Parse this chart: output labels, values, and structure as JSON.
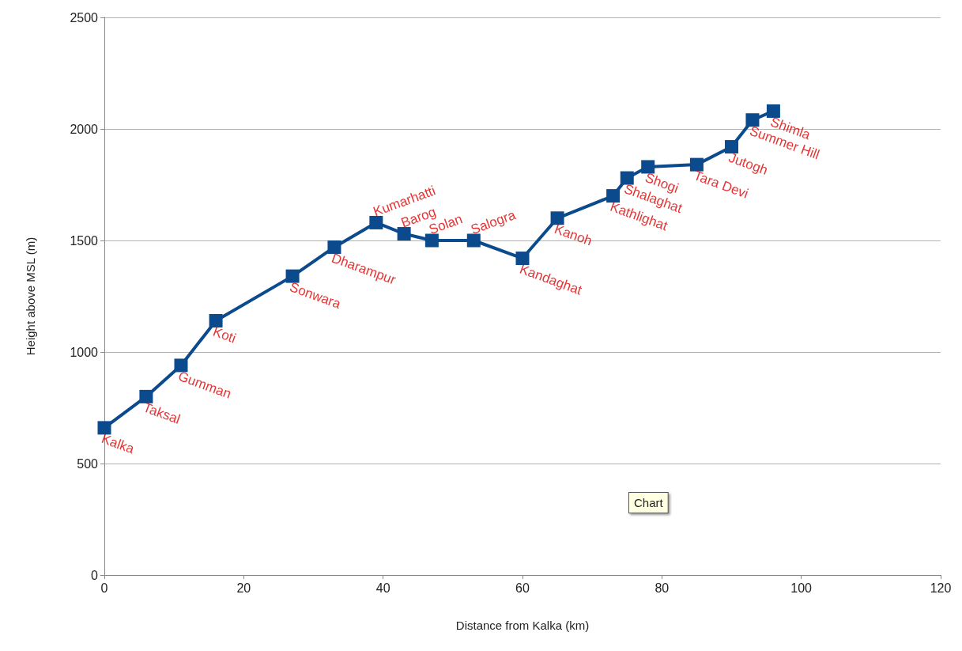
{
  "chart_data": {
    "type": "line",
    "xlabel": "Distance from Kalka (km)",
    "ylabel": "Height above MSL (m)",
    "x": [
      0,
      6,
      11,
      16,
      27,
      33,
      39,
      43,
      47,
      53,
      60,
      65,
      73,
      75,
      78,
      85,
      90,
      93,
      96
    ],
    "series": [
      {
        "color": "#0b4a8c",
        "values": [
          660,
          800,
          940,
          1140,
          1340,
          1470,
          1580,
          1530,
          1500,
          1500,
          1420,
          1600,
          1700,
          1780,
          1830,
          1840,
          1920,
          2040,
          2080
        ]
      }
    ],
    "xlim": [
      0,
      120
    ],
    "xticks": [
      0,
      20,
      40,
      60,
      80,
      100,
      120
    ],
    "ylim": [
      0,
      2500
    ],
    "yticks": [
      0,
      500,
      1000,
      1500,
      2000,
      2500
    ],
    "grid": "y",
    "marker": "square",
    "line_style": "solid",
    "annotations": [
      {
        "text": "Kalka",
        "x": 0,
        "y": 660
      },
      {
        "text": "Taksal",
        "x": 6,
        "y": 800
      },
      {
        "text": "Gumman",
        "x": 11,
        "y": 940
      },
      {
        "text": "Koti",
        "x": 16,
        "y": 1140
      },
      {
        "text": "Sonwara",
        "x": 27,
        "y": 1340
      },
      {
        "text": "Dharampur",
        "x": 33,
        "y": 1470
      },
      {
        "text": "Kumarhatti",
        "x": 39,
        "y": 1580
      },
      {
        "text": "Barog",
        "x": 43,
        "y": 1530
      },
      {
        "text": "Solan",
        "x": 47,
        "y": 1500
      },
      {
        "text": "Salogra",
        "x": 53,
        "y": 1500
      },
      {
        "text": "Kandaghat",
        "x": 60,
        "y": 1420
      },
      {
        "text": "Kanoh",
        "x": 65,
        "y": 1600
      },
      {
        "text": "Kathlighat",
        "x": 73,
        "y": 1700
      },
      {
        "text": "Shalaghat",
        "x": 75,
        "y": 1780
      },
      {
        "text": "Shogi",
        "x": 78,
        "y": 1830
      },
      {
        "text": "Tara Devi",
        "x": 85,
        "y": 1840
      },
      {
        "text": "Jutogh",
        "x": 90,
        "y": 1920
      },
      {
        "text": "Summer Hill",
        "x": 93,
        "y": 2040
      },
      {
        "text": "Shimla",
        "x": 96,
        "y": 2080
      },
      "Chart"
    ]
  }
}
